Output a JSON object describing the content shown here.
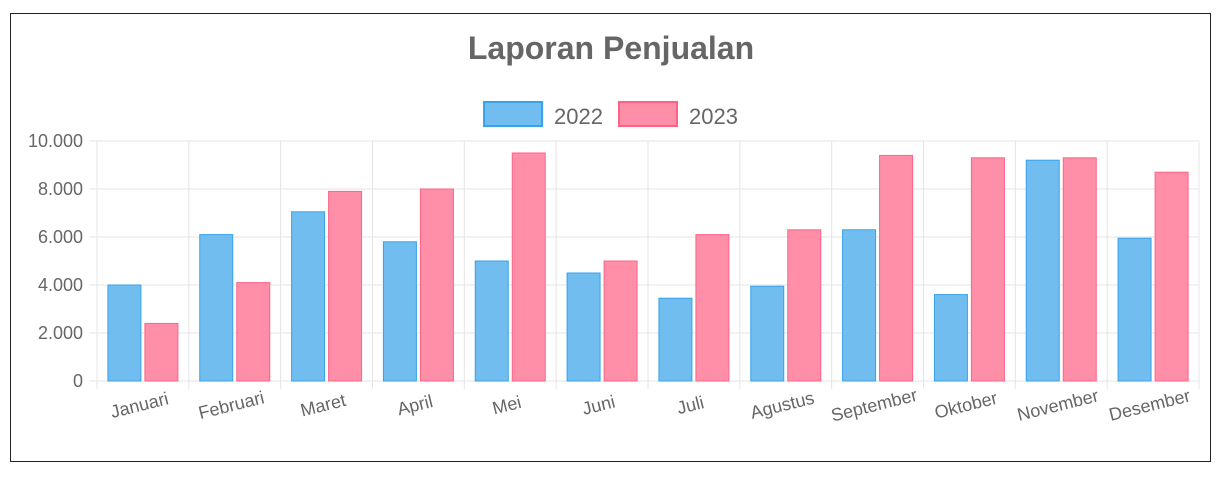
{
  "chart_data": {
    "type": "bar",
    "title": "Laporan Penjualan",
    "categories": [
      "Januari",
      "Februari",
      "Maret",
      "April",
      "Mei",
      "Juni",
      "Juli",
      "Agustus",
      "September",
      "Oktober",
      "November",
      "Desember"
    ],
    "series": [
      {
        "name": "2022",
        "values": [
          4000,
          6100,
          7050,
          5800,
          5000,
          4500,
          3450,
          3950,
          6300,
          3600,
          9200,
          5950
        ],
        "fill": "#71bdf0",
        "stroke": "#36a2eb"
      },
      {
        "name": "2023",
        "values": [
          2400,
          4100,
          7900,
          8000,
          9500,
          5000,
          6100,
          6300,
          9400,
          9300,
          9300,
          8700
        ],
        "fill": "#ff8fa8",
        "stroke": "#ff6384"
      }
    ],
    "ylim": [
      0,
      10000
    ],
    "yticks": [
      {
        "value": 0,
        "label": "0"
      },
      {
        "value": 2000,
        "label": "2.000"
      },
      {
        "value": 4000,
        "label": "4.000"
      },
      {
        "value": 6000,
        "label": "6.000"
      },
      {
        "value": 8000,
        "label": "8.000"
      },
      {
        "value": 10000,
        "label": "10.000"
      }
    ],
    "grid": true,
    "legend_position": "top"
  }
}
